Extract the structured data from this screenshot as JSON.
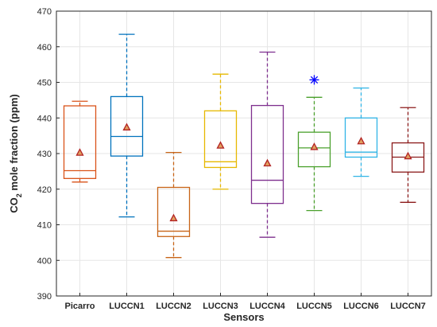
{
  "chart_data": {
    "type": "box",
    "title": "",
    "xlabel": "Sensors",
    "ylabel": "CO2 mole fraction (ppm)",
    "ylabel_parts": {
      "pre": "CO",
      "sub": "2",
      "post": " mole fraction (ppm)"
    },
    "ylim": [
      390,
      470
    ],
    "yticks": [
      390,
      400,
      410,
      420,
      430,
      440,
      450,
      460,
      470
    ],
    "grid": true,
    "categories": [
      "Picarro",
      "LUCCN1",
      "LUCCN2",
      "LUCCN3",
      "LUCCN4",
      "LUCCN5",
      "LUCCN6",
      "LUCCN7"
    ],
    "boxes": [
      {
        "label": "Picarro",
        "color": "#d95319",
        "whisker_low": 422.0,
        "q1": 423.0,
        "median": 425.2,
        "q3": 443.4,
        "whisker_high": 444.7,
        "mean": 430.2,
        "outliers": []
      },
      {
        "label": "LUCCN1",
        "color": "#0072bd",
        "whisker_low": 412.2,
        "q1": 429.3,
        "median": 434.8,
        "q3": 446.0,
        "whisker_high": 463.5,
        "mean": 437.3,
        "outliers": []
      },
      {
        "label": "LUCCN2",
        "color": "#c86417",
        "whisker_low": 400.8,
        "q1": 406.7,
        "median": 408.2,
        "q3": 420.5,
        "whisker_high": 430.3,
        "mean": 411.8,
        "outliers": []
      },
      {
        "label": "LUCCN3",
        "color": "#e6b800",
        "whisker_low": 420.0,
        "q1": 426.1,
        "median": 427.7,
        "q3": 442.0,
        "whisker_high": 452.3,
        "mean": 432.2,
        "outliers": []
      },
      {
        "label": "LUCCN4",
        "color": "#7e2f8e",
        "whisker_low": 406.5,
        "q1": 416.0,
        "median": 422.5,
        "q3": 443.5,
        "whisker_high": 458.5,
        "mean": 427.2,
        "outliers": []
      },
      {
        "label": "LUCCN5",
        "color": "#4aa02c",
        "whisker_low": 414.0,
        "q1": 426.3,
        "median": 431.6,
        "q3": 436.0,
        "whisker_high": 445.8,
        "mean": 431.8,
        "outliers": [
          450.7
        ]
      },
      {
        "label": "LUCCN6",
        "color": "#30b4e6",
        "whisker_low": 423.6,
        "q1": 429.0,
        "median": 430.4,
        "q3": 440.0,
        "whisker_high": 448.4,
        "mean": 433.4,
        "outliers": []
      },
      {
        "label": "LUCCN7",
        "color": "#8b1a1a",
        "whisker_low": 416.3,
        "q1": 424.8,
        "median": 429.0,
        "q3": 433.0,
        "whisker_high": 442.9,
        "mean": 429.2,
        "outliers": []
      }
    ],
    "mean_marker": {
      "shape": "triangle",
      "stroke": "#b22222",
      "fill": "#e0a060"
    },
    "outlier_marker": {
      "shape": "asterisk",
      "color": "#0000ff"
    }
  }
}
